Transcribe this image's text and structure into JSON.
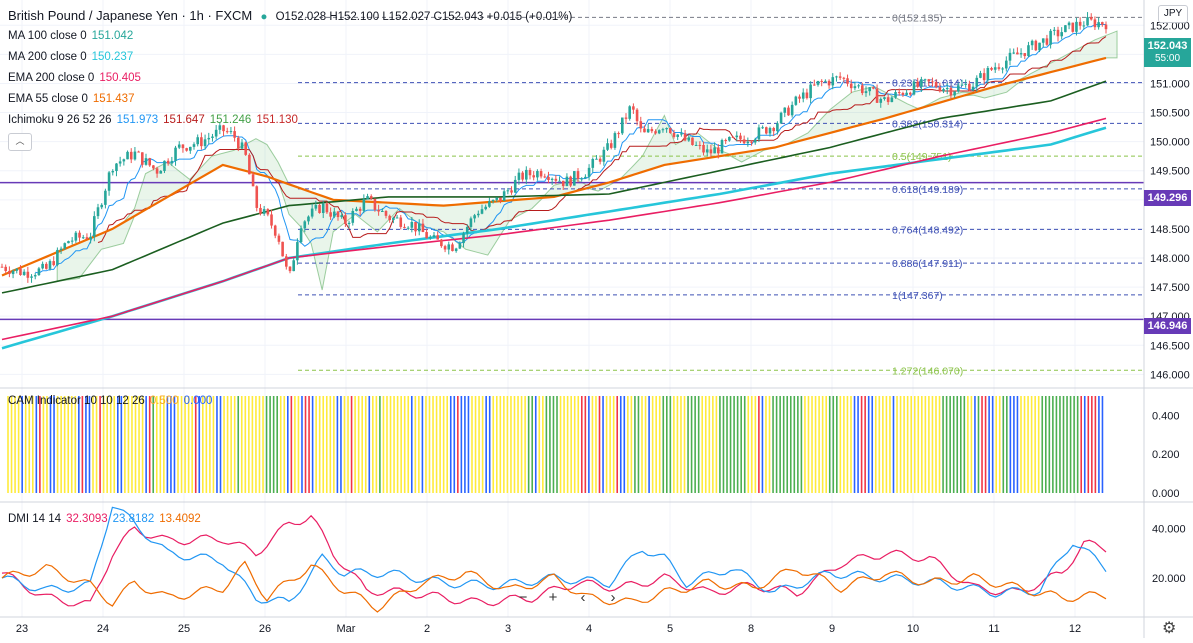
{
  "header": {
    "symbol": "British Pound / Japanese Yen · 1h · FXCM",
    "ohlc": "O152.028 H152.100 L152.027 C152.043 +0.015 (+0.01%)"
  },
  "legend": [
    {
      "name": "MA 100 close 0",
      "value": "151.042",
      "color": "#26a69a"
    },
    {
      "name": "MA 200 close 0",
      "value": "150.237",
      "color": "#26c6da"
    },
    {
      "name": "EMA 200 close 0",
      "value": "150.405",
      "color": "#e91e63"
    },
    {
      "name": "EMA 55 close 0",
      "value": "151.437",
      "color": "#ef6c00"
    }
  ],
  "ichimoku": {
    "name": "Ichimoku 9 26 52 26",
    "values": [
      "151.973",
      "151.647",
      "151.246",
      "151.130"
    ],
    "colors": [
      "#2196f3",
      "#b71c1c",
      "#43a047",
      "#c62828"
    ]
  },
  "currency": "JPY",
  "price_tags": {
    "last": "152.043",
    "countdown": "55:00",
    "upper_line": "149.296",
    "lower_line": "146.946"
  },
  "colors": {
    "up": "#26a69a",
    "down": "#ef5350",
    "fib": "#3f51b5",
    "hline": "#673ab7",
    "ema55": "#ef6c00",
    "ma100": "#1b5e20",
    "ma200": "#26c6da",
    "ema200": "#e91e63",
    "tenkan": "#2196f3",
    "kijun": "#b71c1c"
  },
  "chart_data": [
    {
      "type": "candlestick",
      "title": "British Pound / Japanese Yen · 1h · FXCM",
      "ylim": [
        145.8,
        152.4
      ],
      "yticks": [
        "152.000",
        "151.500",
        "151.000",
        "150.500",
        "150.000",
        "149.500",
        "149.000",
        "148.500",
        "148.000",
        "147.500",
        "147.000",
        "146.500",
        "146.000"
      ],
      "xticks": [
        "23",
        "24",
        "25",
        "26",
        "Mar",
        "2",
        "3",
        "4",
        "5",
        "8",
        "9",
        "10",
        "11",
        "12"
      ],
      "fib_levels": [
        {
          "label": "0(152.135)",
          "value": 152.135
        },
        {
          "label": "0.236(151.014)",
          "value": 151.014
        },
        {
          "label": "0.382(150.314)",
          "value": 150.314
        },
        {
          "label": "0.5(149.751)",
          "value": 149.751
        },
        {
          "label": "0.618(149.189)",
          "value": 149.189
        },
        {
          "label": "0.764(148.492)",
          "value": 148.492
        },
        {
          "label": "0.886(147.911)",
          "value": 147.911
        },
        {
          "label": "1(147.367)",
          "value": 147.367
        },
        {
          "label": "1.272(146.070)",
          "value": 146.07
        }
      ],
      "horizontal_lines": [
        149.296,
        146.946
      ],
      "close_path": [
        [
          0,
          147.85
        ],
        [
          0.02,
          147.75
        ],
        [
          0.04,
          147.8
        ],
        [
          0.06,
          148.3
        ],
        [
          0.08,
          148.4
        ],
        [
          0.09,
          149.0
        ],
        [
          0.1,
          149.6
        ],
        [
          0.12,
          149.8
        ],
        [
          0.14,
          149.5
        ],
        [
          0.16,
          149.9
        ],
        [
          0.18,
          150.0
        ],
        [
          0.2,
          150.2
        ],
        [
          0.21,
          150.1
        ],
        [
          0.22,
          149.8
        ],
        [
          0.23,
          148.9
        ],
        [
          0.24,
          148.7
        ],
        [
          0.25,
          148.4
        ],
        [
          0.26,
          147.6
        ],
        [
          0.27,
          148.6
        ],
        [
          0.29,
          148.9
        ],
        [
          0.31,
          148.6
        ],
        [
          0.33,
          149.0
        ],
        [
          0.35,
          148.7
        ],
        [
          0.37,
          148.6
        ],
        [
          0.39,
          148.3
        ],
        [
          0.41,
          148.2
        ],
        [
          0.43,
          148.8
        ],
        [
          0.45,
          149.0
        ],
        [
          0.47,
          149.4
        ],
        [
          0.49,
          149.5
        ],
        [
          0.51,
          149.3
        ],
        [
          0.53,
          149.5
        ],
        [
          0.55,
          149.9
        ],
        [
          0.57,
          150.6
        ],
        [
          0.58,
          150.1
        ],
        [
          0.6,
          150.3
        ],
        [
          0.62,
          150.0
        ],
        [
          0.64,
          149.8
        ],
        [
          0.66,
          150.0
        ],
        [
          0.68,
          150.1
        ],
        [
          0.7,
          150.3
        ],
        [
          0.72,
          150.7
        ],
        [
          0.74,
          151.0
        ],
        [
          0.76,
          151.1
        ],
        [
          0.78,
          150.9
        ],
        [
          0.8,
          150.7
        ],
        [
          0.82,
          150.9
        ],
        [
          0.84,
          151.0
        ],
        [
          0.86,
          150.9
        ],
        [
          0.88,
          151.0
        ],
        [
          0.9,
          151.3
        ],
        [
          0.92,
          151.5
        ],
        [
          0.94,
          151.7
        ],
        [
          0.96,
          151.9
        ],
        [
          0.98,
          152.05
        ],
        [
          1,
          152.04
        ]
      ],
      "series": [
        {
          "name": "EMA 55 close 0",
          "points": [
            [
              0,
              147.7
            ],
            [
              0.1,
              148.5
            ],
            [
              0.2,
              149.6
            ],
            [
              0.24,
              149.4
            ],
            [
              0.3,
              149.0
            ],
            [
              0.4,
              148.9
            ],
            [
              0.5,
              149.05
            ],
            [
              0.55,
              149.3
            ],
            [
              0.6,
              149.6
            ],
            [
              0.7,
              149.9
            ],
            [
              0.8,
              150.4
            ],
            [
              0.9,
              150.95
            ],
            [
              1,
              151.44
            ]
          ]
        },
        {
          "name": "MA 100 close 0",
          "points": [
            [
              0,
              147.4
            ],
            [
              0.1,
              147.8
            ],
            [
              0.2,
              148.6
            ],
            [
              0.26,
              148.9
            ],
            [
              0.35,
              149.05
            ],
            [
              0.45,
              149.05
            ],
            [
              0.55,
              149.1
            ],
            [
              0.65,
              149.5
            ],
            [
              0.75,
              149.9
            ],
            [
              0.85,
              150.4
            ],
            [
              0.95,
              150.7
            ],
            [
              1,
              151.04
            ]
          ]
        },
        {
          "name": "MA 200 close 0",
          "points": [
            [
              0,
              146.45
            ],
            [
              0.1,
              147.0
            ],
            [
              0.2,
              147.6
            ],
            [
              0.26,
              148.0
            ],
            [
              0.35,
              148.25
            ],
            [
              0.45,
              148.5
            ],
            [
              0.55,
              148.8
            ],
            [
              0.65,
              149.1
            ],
            [
              0.75,
              149.45
            ],
            [
              0.85,
              149.7
            ],
            [
              0.95,
              149.95
            ],
            [
              1,
              150.24
            ]
          ]
        },
        {
          "name": "EMA 200 close 0",
          "points": [
            [
              0,
              146.6
            ],
            [
              0.1,
              147.0
            ],
            [
              0.2,
              147.6
            ],
            [
              0.26,
              148.0
            ],
            [
              0.35,
              148.2
            ],
            [
              0.45,
              148.4
            ],
            [
              0.55,
              148.65
            ],
            [
              0.65,
              148.95
            ],
            [
              0.75,
              149.3
            ],
            [
              0.85,
              149.75
            ],
            [
              0.95,
              150.15
            ],
            [
              1,
              150.4
            ]
          ]
        }
      ]
    },
    {
      "type": "bar",
      "title": "CAM Indicator 10 10 12 26",
      "legend_values": [
        "0.500",
        "0.000"
      ],
      "yticks": [
        "0.400",
        "0.200",
        "0.000"
      ],
      "ylim": [
        0,
        0.5
      ],
      "bar_colors": {
        "yellow": "#ffeb3b",
        "blue": "#2962ff",
        "red": "#f23645",
        "green": "#4caf50"
      },
      "sequence": "yyyybyyybryybbyyyyyybrbbyyryyyybbyyyyyybrgyyybbbyyyyyrbyyyybbyyyygyyyyyyyggggyybryybrrbyyyyyybbyyryyyybyygyyyyyyyybyybyyyyyyybbrbbbyyyybbyyyyyyyyyyggbyyggggyyyyyyrrbyyrbyyyrbbyyggyybyyygggyyyyggggyyyyyggggggggyyyrbyygggggggggyyyyyyygggyyyybbrrbbyyyyybyyyyyyyyyyyyygggggggyybgrrbbyyggbbbyyyyyygggggggggggrbrrrbb"
    },
    {
      "type": "line",
      "title": "DMI 14 14",
      "legend_values": [
        "32.3093",
        "23.8182",
        "13.4092"
      ],
      "yticks": [
        "40.000",
        "20.000"
      ],
      "ylim": [
        5,
        50
      ],
      "series": [
        {
          "name": "32.3093",
          "color": "#e91e63",
          "points": [
            [
              0,
              22
            ],
            [
              0.04,
              12
            ],
            [
              0.08,
              9
            ],
            [
              0.1,
              30
            ],
            [
              0.12,
              40
            ],
            [
              0.15,
              35
            ],
            [
              0.2,
              36
            ],
            [
              0.23,
              30
            ],
            [
              0.26,
              42
            ],
            [
              0.28,
              45
            ],
            [
              0.3,
              30
            ],
            [
              0.33,
              15
            ],
            [
              0.37,
              14
            ],
            [
              0.4,
              12
            ],
            [
              0.43,
              10
            ],
            [
              0.48,
              12
            ],
            [
              0.52,
              18
            ],
            [
              0.56,
              16
            ],
            [
              0.6,
              20
            ],
            [
              0.64,
              14
            ],
            [
              0.68,
              17
            ],
            [
              0.72,
              14
            ],
            [
              0.76,
              26
            ],
            [
              0.8,
              30
            ],
            [
              0.84,
              28
            ],
            [
              0.88,
              16
            ],
            [
              0.92,
              14
            ],
            [
              0.96,
              22
            ],
            [
              0.98,
              34
            ],
            [
              1,
              32
            ]
          ]
        },
        {
          "name": "23.8182",
          "color": "#2196f3",
          "points": [
            [
              0,
              20
            ],
            [
              0.04,
              15
            ],
            [
              0.08,
              17
            ],
            [
              0.1,
              50
            ],
            [
              0.12,
              42
            ],
            [
              0.15,
              30
            ],
            [
              0.2,
              27
            ],
            [
              0.23,
              12
            ],
            [
              0.26,
              10
            ],
            [
              0.29,
              28
            ],
            [
              0.31,
              22
            ],
            [
              0.35,
              22
            ],
            [
              0.4,
              18
            ],
            [
              0.45,
              17
            ],
            [
              0.5,
              20
            ],
            [
              0.55,
              18
            ],
            [
              0.58,
              32
            ],
            [
              0.6,
              28
            ],
            [
              0.62,
              18
            ],
            [
              0.66,
              24
            ],
            [
              0.7,
              14
            ],
            [
              0.75,
              22
            ],
            [
              0.8,
              20
            ],
            [
              0.85,
              18
            ],
            [
              0.9,
              14
            ],
            [
              0.94,
              15
            ],
            [
              0.97,
              35
            ],
            [
              1,
              24
            ]
          ]
        },
        {
          "name": "13.4092",
          "color": "#ef6c00",
          "points": [
            [
              0,
              20
            ],
            [
              0.04,
              24
            ],
            [
              0.08,
              17
            ],
            [
              0.1,
              10
            ],
            [
              0.12,
              18
            ],
            [
              0.15,
              12
            ],
            [
              0.2,
              16
            ],
            [
              0.22,
              25
            ],
            [
              0.24,
              12
            ],
            [
              0.28,
              25
            ],
            [
              0.31,
              15
            ],
            [
              0.34,
              8
            ],
            [
              0.38,
              18
            ],
            [
              0.42,
              22
            ],
            [
              0.46,
              15
            ],
            [
              0.5,
              20
            ],
            [
              0.53,
              12
            ],
            [
              0.57,
              10
            ],
            [
              0.6,
              14
            ],
            [
              0.64,
              18
            ],
            [
              0.68,
              16
            ],
            [
              0.72,
              24
            ],
            [
              0.76,
              16
            ],
            [
              0.8,
              22
            ],
            [
              0.84,
              18
            ],
            [
              0.88,
              20
            ],
            [
              0.92,
              16
            ],
            [
              0.96,
              12
            ],
            [
              1,
              13
            ]
          ]
        }
      ]
    }
  ]
}
